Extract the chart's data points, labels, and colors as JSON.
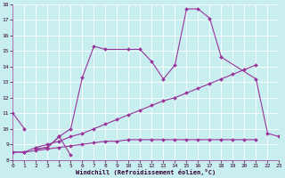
{
  "xlabel": "Windchill (Refroidissement éolien,°C)",
  "bg_color": "#c8eef0",
  "line_color": "#993399",
  "grid_color": "#ffffff",
  "xmin": 0,
  "xmax": 23,
  "ymin": 8,
  "ymax": 18,
  "series": [
    {
      "x": [
        0,
        1
      ],
      "y": [
        11.0,
        10.0
      ]
    },
    {
      "x": [
        2,
        3,
        4,
        5
      ],
      "y": [
        8.7,
        8.8,
        9.5,
        8.3
      ]
    },
    {
      "x": [
        2,
        3,
        4,
        5,
        6,
        7,
        8,
        10,
        11,
        12,
        13,
        14,
        15,
        16,
        17,
        18,
        21,
        22,
        23
      ],
      "y": [
        8.7,
        8.8,
        9.5,
        10.0,
        13.3,
        15.3,
        15.1,
        15.1,
        15.1,
        14.3,
        13.2,
        14.1,
        17.7,
        17.7,
        17.1,
        14.6,
        13.2,
        9.7,
        9.5
      ]
    },
    {
      "x": [
        0,
        1,
        2,
        3,
        4,
        5,
        6,
        7,
        8,
        9,
        10,
        11,
        12,
        13,
        14,
        15,
        16,
        17,
        18,
        19,
        20,
        21
      ],
      "y": [
        8.5,
        8.5,
        8.8,
        9.0,
        9.2,
        9.5,
        9.7,
        10.0,
        10.3,
        10.6,
        10.9,
        11.2,
        11.5,
        11.8,
        12.0,
        12.3,
        12.6,
        12.9,
        13.2,
        13.5,
        13.8,
        14.1
      ]
    },
    {
      "x": [
        0,
        1,
        2,
        3,
        4,
        5,
        6,
        7,
        8,
        9,
        10,
        11,
        12,
        13,
        14,
        15,
        16,
        17,
        18,
        19,
        20,
        21
      ],
      "y": [
        8.5,
        8.5,
        8.6,
        8.7,
        8.8,
        8.9,
        9.0,
        9.1,
        9.2,
        9.2,
        9.3,
        9.3,
        9.3,
        9.3,
        9.3,
        9.3,
        9.3,
        9.3,
        9.3,
        9.3,
        9.3,
        9.3
      ]
    }
  ]
}
